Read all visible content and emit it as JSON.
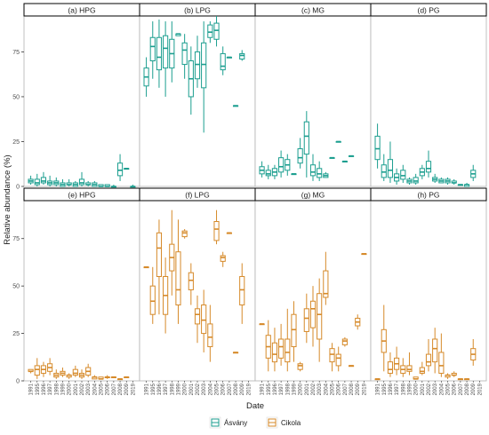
{
  "chart_data": {
    "type": "boxplot",
    "ylabel": "Relative abundance (%)",
    "xlabel": "Date",
    "ylim": [
      0,
      95
    ],
    "yticks": [
      0,
      25,
      50,
      75
    ],
    "years": [
      "1991",
      "1995",
      "1996",
      "1997",
      "1998",
      "1999",
      "2000",
      "2001",
      "2002",
      "2003",
      "2004",
      "2005",
      "2006",
      "2007",
      "2008",
      "2009",
      "2019"
    ],
    "series": [
      {
        "name": "Ásvány",
        "color": "#1b9e8f"
      },
      {
        "name": "Cikola",
        "color": "#d68a2a"
      }
    ],
    "panels": [
      {
        "title": "(a) HPG",
        "series": 0,
        "boxes": [
          [
            1,
            2,
            3,
            4,
            6
          ],
          [
            0,
            1,
            2,
            4,
            7
          ],
          [
            1,
            2,
            3,
            5,
            8
          ],
          [
            0,
            1,
            2,
            3,
            6
          ],
          [
            0,
            1,
            2,
            3,
            5
          ],
          [
            0,
            0,
            1,
            2,
            4
          ],
          [
            0,
            1,
            1,
            2,
            4
          ],
          [
            0,
            0,
            1,
            2,
            3
          ],
          [
            0,
            1,
            2,
            4,
            8
          ],
          [
            0,
            1,
            1,
            2,
            3
          ],
          [
            0,
            0,
            1,
            2,
            3
          ],
          [
            0,
            0,
            0,
            1,
            1
          ],
          [
            0,
            0,
            0,
            1,
            1
          ],
          [
            0,
            0,
            0,
            0,
            1
          ],
          [
            3,
            6,
            9,
            13,
            18
          ],
          [
            10,
            10,
            10,
            10,
            10
          ],
          [
            0,
            0,
            0,
            0,
            1
          ]
        ]
      },
      {
        "title": "(b) LPG",
        "series": 0,
        "boxes": [
          [
            50,
            56,
            61,
            66,
            72
          ],
          [
            60,
            70,
            78,
            83,
            92
          ],
          [
            55,
            65,
            72,
            83,
            93
          ],
          [
            50,
            66,
            77,
            84,
            92
          ],
          [
            58,
            66,
            74,
            82,
            92
          ],
          [
            84,
            84,
            85,
            85,
            85
          ],
          [
            60,
            68,
            76,
            80,
            85
          ],
          [
            40,
            50,
            60,
            70,
            78
          ],
          [
            55,
            60,
            68,
            75,
            84
          ],
          [
            30,
            55,
            68,
            80,
            92
          ],
          [
            80,
            83,
            86,
            90,
            92
          ],
          [
            78,
            82,
            87,
            91,
            95
          ],
          [
            62,
            65,
            67,
            74,
            78
          ],
          [
            72,
            72,
            72,
            72,
            72
          ],
          [
            45,
            45,
            45,
            45,
            45
          ],
          [
            70,
            71,
            73,
            74,
            76
          ],
          null
        ]
      },
      {
        "title": "(c) MG",
        "series": 0,
        "boxes": [
          [
            5,
            7,
            9,
            11,
            14
          ],
          [
            4,
            6,
            7,
            9,
            12
          ],
          [
            4,
            6,
            8,
            10,
            12
          ],
          [
            5,
            8,
            11,
            16,
            20
          ],
          [
            6,
            9,
            12,
            15,
            18
          ],
          [
            7,
            7,
            7,
            7,
            7
          ],
          [
            10,
            13,
            16,
            21,
            27
          ],
          [
            5,
            18,
            28,
            36,
            42
          ],
          [
            3,
            6,
            8,
            12,
            18
          ],
          [
            3,
            5,
            7,
            10,
            14
          ],
          [
            5,
            5,
            6,
            7,
            8
          ],
          [
            16,
            16,
            16,
            16,
            16
          ],
          [
            25,
            25,
            25,
            25,
            25
          ],
          [
            14,
            14,
            14,
            14,
            14
          ],
          [
            17,
            17,
            17,
            17,
            17
          ],
          null,
          null
        ]
      },
      {
        "title": "(d) PG",
        "series": 0,
        "boxes": [
          [
            10,
            15,
            21,
            28,
            35
          ],
          [
            3,
            5,
            8,
            12,
            18
          ],
          [
            2,
            5,
            9,
            15,
            25
          ],
          [
            1,
            3,
            5,
            7,
            10
          ],
          [
            2,
            4,
            6,
            9,
            12
          ],
          [
            1,
            2,
            3,
            4,
            5
          ],
          [
            1,
            2,
            3,
            5,
            7
          ],
          [
            4,
            6,
            8,
            10,
            12
          ],
          [
            5,
            8,
            10,
            14,
            20
          ],
          [
            2,
            3,
            4,
            5,
            7
          ],
          [
            2,
            2,
            3,
            4,
            5
          ],
          [
            1,
            2,
            3,
            4,
            5
          ],
          [
            1,
            2,
            2,
            3,
            4
          ],
          [
            1,
            1,
            1,
            1,
            1
          ],
          [
            0,
            0,
            1,
            1,
            2
          ],
          [
            3,
            5,
            7,
            9,
            12
          ],
          null
        ]
      },
      {
        "title": "(e) HPG",
        "series": 1,
        "boxes": [
          [
            4,
            5,
            5,
            6,
            6
          ],
          [
            1,
            3,
            6,
            8,
            12
          ],
          [
            2,
            4,
            6,
            8,
            10
          ],
          [
            3,
            5,
            7,
            9,
            12
          ],
          [
            1,
            2,
            3,
            4,
            6
          ],
          [
            2,
            3,
            4,
            5,
            7
          ],
          [
            1,
            2,
            3,
            3,
            4
          ],
          [
            2,
            3,
            4,
            6,
            8
          ],
          [
            1,
            2,
            3,
            4,
            6
          ],
          [
            2,
            3,
            5,
            7,
            9
          ],
          [
            1,
            1,
            2,
            2,
            3
          ],
          [
            1,
            1,
            1,
            2,
            2
          ],
          [
            1,
            2,
            2,
            2,
            3
          ],
          [
            2,
            2,
            2,
            2,
            2
          ],
          [
            1,
            1,
            1,
            1,
            1
          ],
          [
            2,
            2,
            2,
            2,
            2
          ],
          null
        ]
      },
      {
        "title": "(f) LPG",
        "series": 1,
        "boxes": [
          [
            60,
            60,
            60,
            60,
            60
          ],
          [
            30,
            35,
            42,
            50,
            60
          ],
          [
            35,
            55,
            70,
            78,
            85
          ],
          [
            25,
            35,
            45,
            55,
            65
          ],
          [
            45,
            58,
            65,
            72,
            90
          ],
          [
            30,
            40,
            48,
            68,
            85
          ],
          [
            75,
            76,
            78,
            79,
            80
          ],
          [
            40,
            48,
            53,
            57,
            62
          ],
          [
            20,
            30,
            35,
            38,
            45
          ],
          [
            15,
            25,
            32,
            40,
            48
          ],
          [
            10,
            18,
            23,
            30,
            40
          ],
          [
            72,
            74,
            80,
            84,
            90
          ],
          [
            60,
            63,
            65,
            66,
            68
          ],
          [
            78,
            78,
            78,
            78,
            78
          ],
          [
            15,
            15,
            15,
            15,
            15
          ],
          [
            30,
            40,
            48,
            55,
            62
          ],
          null
        ]
      },
      {
        "title": "(g) MG",
        "series": 1,
        "boxes": [
          [
            30,
            30,
            30,
            30,
            30
          ],
          [
            5,
            12,
            18,
            24,
            32
          ],
          [
            5,
            10,
            14,
            20,
            28
          ],
          [
            8,
            12,
            18,
            22,
            30
          ],
          [
            5,
            10,
            15,
            22,
            38
          ],
          [
            10,
            18,
            27,
            35,
            42
          ],
          [
            5,
            6,
            8,
            9,
            10
          ],
          [
            20,
            26,
            33,
            38,
            46
          ],
          [
            18,
            28,
            38,
            42,
            50
          ],
          [
            10,
            22,
            35,
            46,
            54
          ],
          [
            40,
            44,
            46,
            58,
            68
          ],
          [
            5,
            10,
            14,
            17,
            20
          ],
          [
            5,
            8,
            12,
            14,
            18
          ],
          [
            18,
            19,
            21,
            22,
            23
          ],
          [
            8,
            8,
            8,
            8,
            8
          ],
          [
            27,
            29,
            31,
            33,
            35
          ],
          [
            67,
            67,
            67,
            67,
            67
          ]
        ]
      },
      {
        "title": "(h) PG",
        "series": 1,
        "boxes": [
          [
            1,
            1,
            1,
            1,
            1
          ],
          [
            5,
            15,
            21,
            27,
            40
          ],
          [
            2,
            4,
            6,
            10,
            15
          ],
          [
            3,
            6,
            9,
            12,
            18
          ],
          [
            2,
            4,
            6,
            8,
            12
          ],
          [
            3,
            5,
            6,
            8,
            15
          ],
          [
            1,
            1,
            1,
            2,
            2
          ],
          [
            3,
            4,
            5,
            7,
            10
          ],
          [
            5,
            8,
            10,
            14,
            22
          ],
          [
            4,
            10,
            17,
            22,
            28
          ],
          [
            2,
            4,
            8,
            15,
            25
          ],
          [
            1,
            2,
            3,
            3,
            4
          ],
          [
            2,
            3,
            3,
            4,
            5
          ],
          [
            1,
            1,
            1,
            1,
            1
          ],
          [
            1,
            1,
            1,
            1,
            1
          ],
          [
            8,
            11,
            14,
            17,
            22
          ],
          null
        ]
      }
    ]
  }
}
